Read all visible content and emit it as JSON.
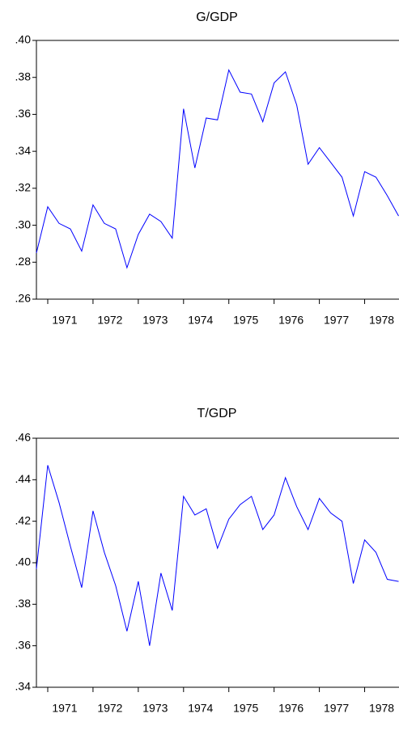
{
  "chart_data": [
    {
      "type": "line",
      "title": "G/GDP",
      "categories": [
        null,
        null,
        "1971",
        null,
        null,
        null,
        "1972",
        null,
        null,
        null,
        "1973",
        null,
        null,
        null,
        "1974",
        null,
        null,
        null,
        "1975",
        null,
        null,
        null,
        "1976",
        null,
        null,
        null,
        "1977",
        null,
        null,
        null,
        "1978",
        null,
        null
      ],
      "series": [
        {
          "color": "#0000ff",
          "values": [
            0.285,
            0.31,
            0.301,
            0.298,
            0.286,
            0.311,
            0.301,
            0.298,
            0.277,
            0.295,
            0.306,
            0.302,
            0.293,
            0.363,
            0.331,
            0.358,
            0.357,
            0.384,
            0.372,
            0.371,
            0.356,
            0.377,
            0.383,
            0.365,
            0.333,
            0.342,
            0.334,
            0.326,
            0.305,
            0.329,
            0.326,
            0.316,
            0.305
          ]
        }
      ],
      "ylim": [
        0.26,
        0.4
      ],
      "yticks": [
        {
          "value": 0.26,
          "label": ".26"
        },
        {
          "value": 0.28,
          "label": ".28"
        },
        {
          "value": 0.3,
          "label": ".30"
        },
        {
          "value": 0.32,
          "label": ".32"
        },
        {
          "value": 0.34,
          "label": ".34"
        },
        {
          "value": 0.36,
          "label": ".36"
        },
        {
          "value": 0.38,
          "label": ".38"
        },
        {
          "value": 0.4,
          "label": ".40"
        }
      ]
    },
    {
      "type": "line",
      "title": "T/GDP",
      "categories": [
        null,
        null,
        "1971",
        null,
        null,
        null,
        "1972",
        null,
        null,
        null,
        "1973",
        null,
        null,
        null,
        "1974",
        null,
        null,
        null,
        "1975",
        null,
        null,
        null,
        "1976",
        null,
        null,
        null,
        "1977",
        null,
        null,
        null,
        "1978",
        null,
        null
      ],
      "series": [
        {
          "color": "#0000ff",
          "values": [
            0.397,
            0.447,
            0.429,
            0.408,
            0.388,
            0.425,
            0.405,
            0.389,
            0.367,
            0.391,
            0.36,
            0.395,
            0.377,
            0.432,
            0.423,
            0.426,
            0.407,
            0.421,
            0.428,
            0.432,
            0.416,
            0.423,
            0.441,
            0.427,
            0.416,
            0.431,
            0.424,
            0.42,
            0.39,
            0.411,
            0.405,
            0.392,
            0.391
          ]
        }
      ],
      "ylim": [
        0.34,
        0.46
      ],
      "yticks": [
        {
          "value": 0.34,
          "label": ".34"
        },
        {
          "value": 0.36,
          "label": ".36"
        },
        {
          "value": 0.38,
          "label": ".38"
        },
        {
          "value": 0.4,
          "label": ".40"
        },
        {
          "value": 0.42,
          "label": ".42"
        },
        {
          "value": 0.44,
          "label": ".44"
        },
        {
          "value": 0.46,
          "label": ".46"
        }
      ]
    }
  ]
}
